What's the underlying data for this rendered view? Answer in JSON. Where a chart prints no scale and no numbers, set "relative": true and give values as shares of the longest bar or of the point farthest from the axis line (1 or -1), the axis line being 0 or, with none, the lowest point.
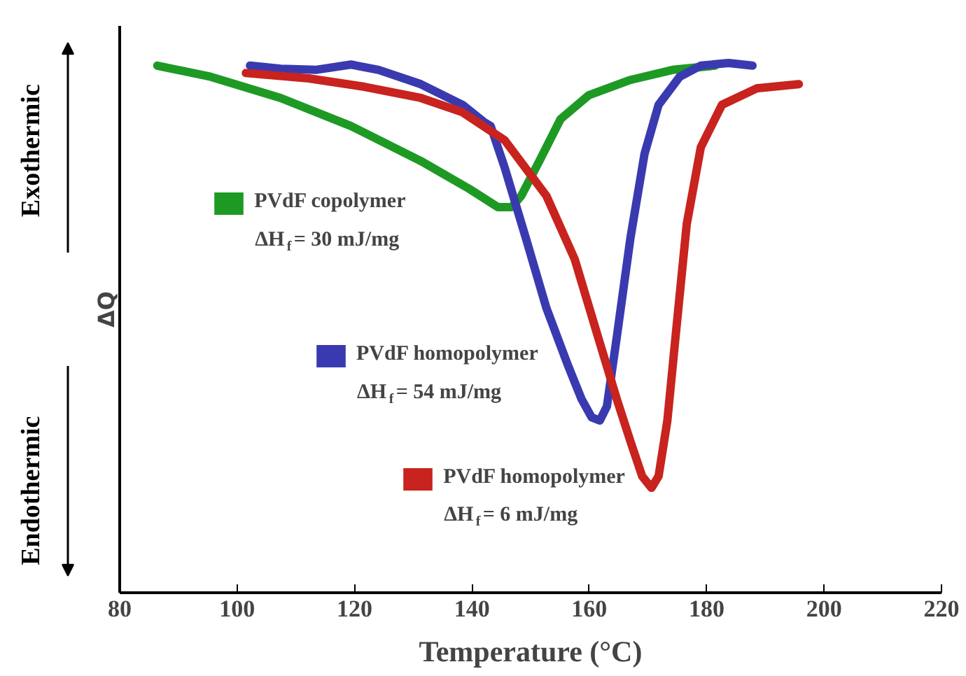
{
  "chart_data": {
    "type": "line",
    "relative": true,
    "xlabel": "Temperature (°C)",
    "ylabel": "ΔQ",
    "xlim": [
      80,
      220
    ],
    "xticks": [
      80,
      100,
      120,
      140,
      160,
      180,
      200,
      220
    ],
    "grid": false,
    "legend": "left",
    "marker": "none",
    "line_style": "solid",
    "annotations": [
      "ΔH$_{f}$= 30 mJ/mg",
      "ΔH$_{f}$= 54 mJ/mg",
      "ΔH$_{f}$= 6 mJ/mg",
      "Exothermic",
      "Endothermic"
    ],
    "series": [
      {
        "name": "PVdF copolymer",
        "color": "#1e9a24",
        "x": [
          86.4,
          95.5,
          107.4,
          119.4,
          131.3,
          139.6,
          144.4,
          146.8,
          148.4,
          151.5,
          155.1,
          159.9,
          167.0,
          174.2,
          181.4
        ],
        "values": [
          0.995,
          0.974,
          0.934,
          0.881,
          0.815,
          0.762,
          0.728,
          0.728,
          0.749,
          0.815,
          0.894,
          0.939,
          0.968,
          0.987,
          0.995
        ]
      },
      {
        "name": "PVdF homopolymer",
        "color": "#3a3ab0",
        "x": [
          102.2,
          107.4,
          113.4,
          119.4,
          124.1,
          131.3,
          138.4,
          142.0,
          143.2,
          145.6,
          149.2,
          152.7,
          156.3,
          158.7,
          160.4,
          161.8,
          163.0,
          164.7,
          167.0,
          169.4,
          171.8,
          175.4,
          179.0,
          183.7,
          187.8
        ],
        "values": [
          0.995,
          0.989,
          0.987,
          0.997,
          0.987,
          0.96,
          0.921,
          0.889,
          0.881,
          0.802,
          0.669,
          0.537,
          0.431,
          0.365,
          0.331,
          0.325,
          0.352,
          0.484,
          0.669,
          0.828,
          0.921,
          0.974,
          0.995,
          1.0,
          0.995
        ]
      },
      {
        "name": "PVdF homopolymer",
        "color": "#c8231e",
        "x": [
          101.5,
          112.2,
          121.7,
          131.3,
          138.4,
          145.6,
          152.7,
          157.5,
          161.1,
          164.7,
          167.0,
          169.0,
          170.6,
          171.8,
          173.3,
          174.7,
          176.6,
          179.0,
          182.6,
          188.5,
          195.7
        ],
        "values": [
          0.981,
          0.971,
          0.955,
          0.934,
          0.907,
          0.854,
          0.749,
          0.63,
          0.497,
          0.365,
          0.286,
          0.22,
          0.198,
          0.22,
          0.325,
          0.484,
          0.696,
          0.841,
          0.921,
          0.952,
          0.96
        ]
      }
    ]
  }
}
